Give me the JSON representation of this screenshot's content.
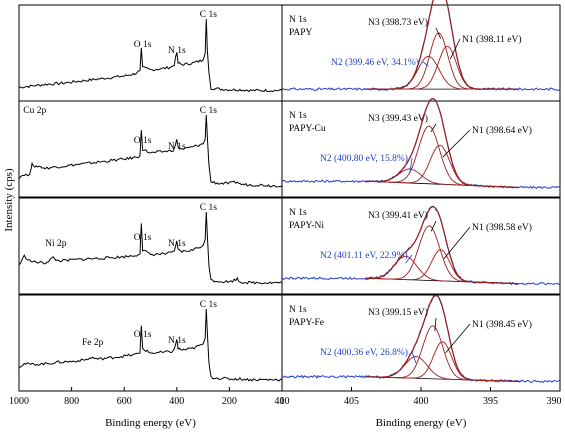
{
  "chart_data": {
    "type": "line",
    "ylabel": "Intensity (cps)",
    "colors": {
      "raw": "#1f3fcf",
      "fit": "#9a1f1f",
      "background": "#000000",
      "survey": "#000000",
      "blue_note": "#1f3fcf"
    },
    "survey": {
      "xlabel": "Binding energy (eV)",
      "xlim": [
        1000,
        0
      ],
      "xticks": [
        "1000",
        "800",
        "600",
        "400",
        "200",
        "0"
      ],
      "xtick_values": [
        1000,
        800,
        600,
        400,
        200,
        0
      ],
      "panels": [
        {
          "name": "PAPY",
          "points": [
            [
              1000,
              0.1
            ],
            [
              950,
              0.12
            ],
            [
              900,
              0.14
            ],
            [
              850,
              0.15
            ],
            [
              800,
              0.17
            ],
            [
              750,
              0.19
            ],
            [
              700,
              0.21
            ],
            [
              650,
              0.23
            ],
            [
              600,
              0.25
            ],
            [
              560,
              0.28
            ],
            [
              540,
              0.32
            ],
            [
              535,
              0.62
            ],
            [
              530,
              0.36
            ],
            [
              500,
              0.33
            ],
            [
              450,
              0.35
            ],
            [
              420,
              0.37
            ],
            [
              410,
              0.4
            ],
            [
              400,
              0.56
            ],
            [
              395,
              0.42
            ],
            [
              380,
              0.4
            ],
            [
              340,
              0.42
            ],
            [
              300,
              0.46
            ],
            [
              292,
              0.55
            ],
            [
              288,
              1.0
            ],
            [
              284,
              0.6
            ],
            [
              278,
              0.3
            ],
            [
              270,
              0.09
            ],
            [
              240,
              0.08
            ],
            [
              200,
              0.07
            ],
            [
              160,
              0.07
            ],
            [
              120,
              0.06
            ],
            [
              80,
              0.06
            ],
            [
              40,
              0.06
            ],
            [
              0,
              0.06
            ]
          ],
          "labels": [
            {
              "text": "O 1s",
              "x": 530
            },
            {
              "text": "N 1s",
              "x": 400
            },
            {
              "text": "C 1s",
              "x": 280
            }
          ]
        },
        {
          "name": "PAPY-Cu",
          "points": [
            [
              1000,
              0.18
            ],
            [
              980,
              0.22
            ],
            [
              960,
              0.2
            ],
            [
              950,
              0.38
            ],
            [
              940,
              0.3
            ],
            [
              930,
              0.33
            ],
            [
              900,
              0.3
            ],
            [
              850,
              0.32
            ],
            [
              800,
              0.34
            ],
            [
              750,
              0.36
            ],
            [
              700,
              0.38
            ],
            [
              650,
              0.4
            ],
            [
              600,
              0.42
            ],
            [
              560,
              0.44
            ],
            [
              540,
              0.46
            ],
            [
              535,
              0.8
            ],
            [
              530,
              0.55
            ],
            [
              500,
              0.5
            ],
            [
              450,
              0.52
            ],
            [
              420,
              0.53
            ],
            [
              410,
              0.55
            ],
            [
              400,
              0.68
            ],
            [
              395,
              0.57
            ],
            [
              380,
              0.55
            ],
            [
              340,
              0.58
            ],
            [
              300,
              0.62
            ],
            [
              292,
              0.68
            ],
            [
              288,
              1.0
            ],
            [
              284,
              0.72
            ],
            [
              278,
              0.35
            ],
            [
              270,
              0.12
            ],
            [
              240,
              0.1
            ],
            [
              200,
              0.1
            ],
            [
              170,
              0.12
            ],
            [
              160,
              0.09
            ],
            [
              120,
              0.08
            ],
            [
              80,
              0.08
            ],
            [
              40,
              0.07
            ],
            [
              0,
              0.07
            ]
          ],
          "labels": [
            {
              "text": "Cu 2p",
              "x": 940
            },
            {
              "text": "O 1s",
              "x": 530
            },
            {
              "text": "N 1s",
              "x": 400
            },
            {
              "text": "C 1s",
              "x": 280
            }
          ]
        },
        {
          "name": "PAPY-Ni",
          "points": [
            [
              1000,
              0.3
            ],
            [
              980,
              0.42
            ],
            [
              960,
              0.36
            ],
            [
              940,
              0.34
            ],
            [
              900,
              0.33
            ],
            [
              870,
              0.4
            ],
            [
              855,
              0.36
            ],
            [
              820,
              0.36
            ],
            [
              800,
              0.37
            ],
            [
              750,
              0.38
            ],
            [
              700,
              0.39
            ],
            [
              650,
              0.4
            ],
            [
              600,
              0.41
            ],
            [
              560,
              0.43
            ],
            [
              540,
              0.45
            ],
            [
              535,
              0.85
            ],
            [
              530,
              0.5
            ],
            [
              500,
              0.44
            ],
            [
              450,
              0.45
            ],
            [
              420,
              0.46
            ],
            [
              410,
              0.48
            ],
            [
              400,
              0.62
            ],
            [
              395,
              0.5
            ],
            [
              380,
              0.48
            ],
            [
              340,
              0.5
            ],
            [
              300,
              0.56
            ],
            [
              292,
              0.64
            ],
            [
              288,
              1.0
            ],
            [
              284,
              0.7
            ],
            [
              278,
              0.3
            ],
            [
              270,
              0.1
            ],
            [
              240,
              0.09
            ],
            [
              200,
              0.08
            ],
            [
              170,
              0.12
            ],
            [
              160,
              0.08
            ],
            [
              120,
              0.07
            ],
            [
              80,
              0.07
            ],
            [
              40,
              0.07
            ],
            [
              0,
              0.07
            ]
          ],
          "labels": [
            {
              "text": "Ni 2p",
              "x": 860
            },
            {
              "text": "O 1s",
              "x": 530
            },
            {
              "text": "N 1s",
              "x": 400
            },
            {
              "text": "C 1s",
              "x": 280
            }
          ]
        },
        {
          "name": "PAPY-Fe",
          "points": [
            [
              1000,
              0.24
            ],
            [
              980,
              0.28
            ],
            [
              950,
              0.27
            ],
            [
              900,
              0.28
            ],
            [
              850,
              0.3
            ],
            [
              800,
              0.31
            ],
            [
              750,
              0.33
            ],
            [
              720,
              0.36
            ],
            [
              700,
              0.34
            ],
            [
              650,
              0.36
            ],
            [
              600,
              0.38
            ],
            [
              560,
              0.4
            ],
            [
              540,
              0.42
            ],
            [
              535,
              0.78
            ],
            [
              530,
              0.48
            ],
            [
              500,
              0.42
            ],
            [
              450,
              0.43
            ],
            [
              420,
              0.44
            ],
            [
              410,
              0.46
            ],
            [
              400,
              0.6
            ],
            [
              395,
              0.48
            ],
            [
              380,
              0.46
            ],
            [
              340,
              0.48
            ],
            [
              300,
              0.54
            ],
            [
              292,
              0.62
            ],
            [
              288,
              1.0
            ],
            [
              284,
              0.7
            ],
            [
              278,
              0.3
            ],
            [
              270,
              0.1
            ],
            [
              240,
              0.09
            ],
            [
              200,
              0.08
            ],
            [
              160,
              0.08
            ],
            [
              120,
              0.07
            ],
            [
              80,
              0.07
            ],
            [
              40,
              0.07
            ],
            [
              0,
              0.07
            ]
          ],
          "labels": [
            {
              "text": "Fe 2p",
              "x": 720
            },
            {
              "text": "O 1s",
              "x": 530
            },
            {
              "text": "N 1s",
              "x": 400
            },
            {
              "text": "C 1s",
              "x": 280
            }
          ]
        }
      ]
    },
    "n1s": {
      "xlabel": "Binding energy (eV)",
      "xlim": [
        410,
        390
      ],
      "xticks": [
        "410",
        "405",
        "400",
        "395",
        "390"
      ],
      "xtick_values": [
        410,
        405,
        400,
        395,
        390
      ],
      "fit_range": [
        404,
        393
      ],
      "panels": [
        {
          "title": [
            "N 1s",
            "PAPY"
          ],
          "background": {
            "start": 0.05,
            "end": 0.05
          },
          "components": [
            {
              "center": 398.11,
              "height": 0.55,
              "sigma": 0.65,
              "label": "N1 (398.11 eV)",
              "color": "black"
            },
            {
              "center": 399.46,
              "height": 0.42,
              "sigma": 0.75,
              "label": "N2 (399.46 eV, 34.1%)",
              "color": "blue"
            },
            {
              "center": 398.73,
              "height": 0.72,
              "sigma": 0.65,
              "label": "N3 (398.73 eV)",
              "color": "black"
            }
          ]
        },
        {
          "title": [
            "N 1s",
            "PAPY-Cu"
          ],
          "background": {
            "start": 0.1,
            "end": 0.02
          },
          "components": [
            {
              "center": 398.64,
              "height": 0.5,
              "sigma": 0.7,
              "label": "N1 (398.64 eV)",
              "color": "black"
            },
            {
              "center": 400.8,
              "height": 0.18,
              "sigma": 0.8,
              "label": "N2 (400.80 eV, 15.8%)",
              "color": "blue"
            },
            {
              "center": 399.43,
              "height": 0.74,
              "sigma": 0.75,
              "label": "N3 (399.43 eV)",
              "color": "black"
            }
          ]
        },
        {
          "title": [
            "N 1s",
            "PAPY-Ni"
          ],
          "background": {
            "start": 0.1,
            "end": 0.03
          },
          "components": [
            {
              "center": 398.58,
              "height": 0.4,
              "sigma": 0.65,
              "label": "N1 (398.58 eV)",
              "color": "black"
            },
            {
              "center": 401.11,
              "height": 0.3,
              "sigma": 0.8,
              "label": "N2 (401.11 eV, 22.9%)",
              "color": "blue"
            },
            {
              "center": 399.41,
              "height": 0.7,
              "sigma": 0.75,
              "label": "N3 (399.41 eV)",
              "color": "black"
            }
          ]
        },
        {
          "title": [
            "N 1s",
            "PAPY-Fe"
          ],
          "background": {
            "start": 0.08,
            "end": 0.02
          },
          "components": [
            {
              "center": 398.45,
              "height": 0.48,
              "sigma": 0.65,
              "label": "N1 (398.45 eV)",
              "color": "black"
            },
            {
              "center": 400.36,
              "height": 0.28,
              "sigma": 0.8,
              "label": "N2 (400.36 eV, 26.8%)",
              "color": "blue"
            },
            {
              "center": 399.15,
              "height": 0.68,
              "sigma": 0.72,
              "label": "N3 (399.15 eV)",
              "color": "black"
            }
          ]
        }
      ]
    }
  }
}
